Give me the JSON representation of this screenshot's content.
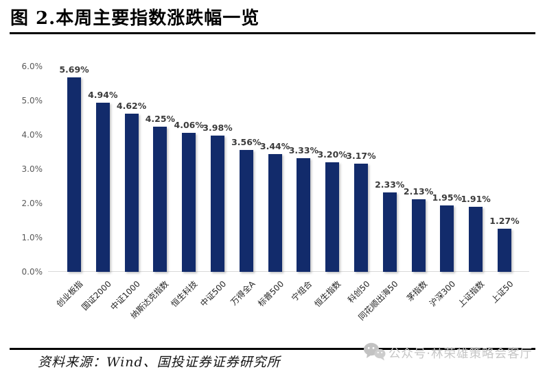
{
  "header": {
    "title": "图 2.本周主要指数涨跌幅一览"
  },
  "chart_data": {
    "type": "bar",
    "title": "本周主要指数涨跌幅一览",
    "categories": [
      "创业板指",
      "国证2000",
      "中证1000",
      "纳斯达克指数",
      "恒生科技",
      "中证500",
      "万得全A",
      "标普500",
      "宁组合",
      "恒生指数",
      "科创50",
      "同花顺出海50",
      "茅指数",
      "沪深300",
      "上证指数",
      "上证50"
    ],
    "values": [
      5.69,
      4.94,
      4.62,
      4.25,
      4.06,
      3.98,
      3.56,
      3.44,
      3.33,
      3.2,
      3.17,
      2.33,
      2.13,
      1.95,
      1.91,
      1.27
    ],
    "value_labels": [
      "5.69%",
      "4.94%",
      "4.62%",
      "4.25%",
      "4.06%",
      "3.98%",
      "3.56%",
      "3.44%",
      "3.33%",
      "3.20%",
      "3.17%",
      "2.33%",
      "2.13%",
      "1.95%",
      "1.91%",
      "1.27%"
    ],
    "xlabel": "",
    "ylabel": "",
    "ylim": [
      0,
      6
    ],
    "yticks": [
      {
        "value": 6.0,
        "label": "6.0%"
      },
      {
        "value": 5.0,
        "label": "5.0%"
      },
      {
        "value": 4.0,
        "label": "4.0%"
      },
      {
        "value": 3.0,
        "label": "3.0%"
      },
      {
        "value": 2.0,
        "label": "2.0%"
      },
      {
        "value": 1.0,
        "label": "1.0%"
      },
      {
        "value": 0.0,
        "label": "0.0%"
      }
    ],
    "grid": false,
    "legend_position": "none",
    "bar_color": "#122b6b",
    "value_label_color": "#3b3b3b",
    "tick_label_color": "#595959",
    "category_label_color": "#1f1f1f",
    "axis_line_color": "#d9d9d9"
  },
  "footer": {
    "source": "资料来源：Wind、国投证券证券研究所"
  },
  "watermark": {
    "icon": "wechat-icon",
    "text": "公众号·林荣雄策略会客厅",
    "color": "#c6c6c6"
  }
}
